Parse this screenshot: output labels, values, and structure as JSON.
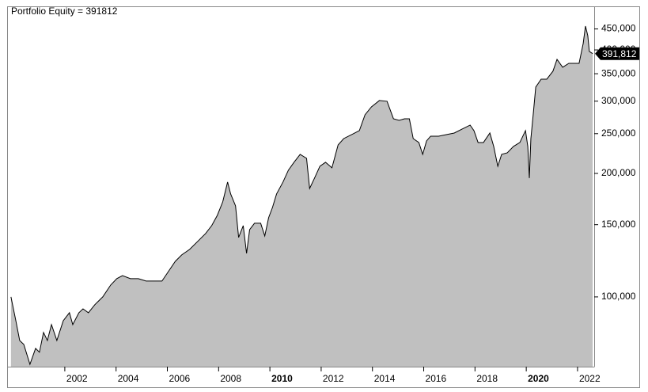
{
  "chart_data": {
    "type": "area",
    "title": "Portfolio Equity = 391812",
    "x": [
      1999.9,
      2000.09,
      2000.24,
      2000.4,
      2000.64,
      2000.86,
      2001.01,
      2001.17,
      2001.32,
      2001.48,
      2001.69,
      2001.94,
      2002.18,
      2002.31,
      2002.55,
      2002.71,
      2002.92,
      2003.17,
      2003.48,
      2003.79,
      2004.03,
      2004.25,
      2004.56,
      2004.87,
      2005.17,
      2005.48,
      2005.79,
      2006.1,
      2006.31,
      2006.56,
      2006.87,
      2007.18,
      2007.49,
      2007.73,
      2007.95,
      2008.16,
      2008.35,
      2008.47,
      2008.66,
      2008.78,
      2008.96,
      2009.09,
      2009.21,
      2009.4,
      2009.64,
      2009.8,
      2009.95,
      2010.1,
      2010.26,
      2010.51,
      2010.72,
      2010.94,
      2011.18,
      2011.43,
      2011.55,
      2011.74,
      2011.95,
      2012.17,
      2012.42,
      2012.66,
      2012.88,
      2013.19,
      2013.49,
      2013.71,
      2013.96,
      2014.27,
      2014.57,
      2014.82,
      2015.04,
      2015.25,
      2015.44,
      2015.59,
      2015.81,
      2015.96,
      2016.11,
      2016.27,
      2016.58,
      2016.88,
      2017.19,
      2017.5,
      2017.81,
      2017.96,
      2018.12,
      2018.33,
      2018.58,
      2018.73,
      2018.89,
      2019.04,
      2019.26,
      2019.5,
      2019.75,
      2019.97,
      2020.06,
      2020.12,
      2020.18,
      2020.27,
      2020.37,
      2020.58,
      2020.8,
      2021.04,
      2021.2,
      2021.42,
      2021.66,
      2021.91,
      2022.06,
      2022.22,
      2022.31,
      2022.4,
      2022.46,
      2022.59
    ],
    "values": [
      100000,
      87500,
      78300,
      76600,
      68500,
      74900,
      73300,
      81900,
      78300,
      85600,
      78300,
      87500,
      91500,
      85600,
      91500,
      93500,
      91500,
      95700,
      100000,
      106900,
      110800,
      112700,
      110800,
      110800,
      109300,
      109300,
      109300,
      116800,
      122100,
      126600,
      130600,
      136500,
      142700,
      149200,
      158100,
      170500,
      190500,
      178200,
      166700,
      139600,
      149200,
      127700,
      145900,
      151200,
      151200,
      140800,
      156000,
      165200,
      178200,
      190500,
      203600,
      212900,
      222600,
      217700,
      183800,
      194800,
      208200,
      212900,
      206400,
      234700,
      243200,
      248700,
      254300,
      277900,
      290600,
      301100,
      299800,
      271800,
      269400,
      271800,
      271800,
      243200,
      237900,
      222600,
      240000,
      246500,
      246500,
      248700,
      250900,
      256600,
      262300,
      254300,
      237900,
      237900,
      250900,
      232700,
      208200,
      222600,
      224500,
      232700,
      237900,
      254300,
      232700,
      194800,
      243200,
      277900,
      324700,
      339500,
      339500,
      354900,
      379400,
      362900,
      371000,
      371000,
      371000,
      414600,
      457200,
      433500,
      396600,
      391812
    ],
    "last_value_label": "391,812",
    "line_color": "#000000",
    "fill_color": "#c0c0c0",
    "log_scale": true,
    "xlim": [
      1999.75,
      2022.65
    ],
    "xticks": [
      2002,
      2004,
      2006,
      2008,
      2010,
      2012,
      2014,
      2016,
      2018,
      2020,
      2022
    ],
    "bold_xticks": [
      2010,
      2020
    ],
    "ylim": [
      67600,
      510900
    ],
    "yticks": [
      {
        "value": 100000,
        "label": "100,000"
      },
      {
        "value": 150000,
        "label": "150,000"
      },
      {
        "value": 200000,
        "label": "200,000"
      },
      {
        "value": 250000,
        "label": "250,000"
      },
      {
        "value": 300000,
        "label": "300,000"
      },
      {
        "value": 350000,
        "label": "350,000"
      },
      {
        "value": 400000,
        "label": "400,000"
      },
      {
        "value": 450000,
        "label": "450,000"
      }
    ]
  }
}
